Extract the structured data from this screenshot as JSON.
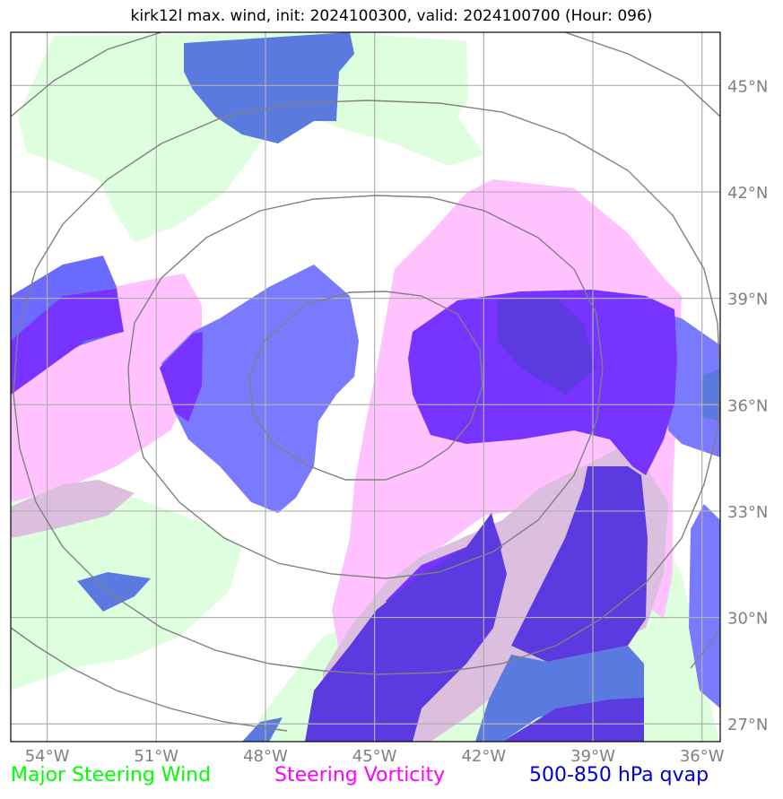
{
  "title": "kirk12l max. wind, init: 2024100300, valid: 2024100700 (Hour: 096)",
  "map": {
    "lon_range": [
      -55,
      -35.5
    ],
    "lat_range": [
      26.5,
      46.5
    ],
    "lat_ticks": [
      {
        "value": 45,
        "label": "45°N"
      },
      {
        "value": 42,
        "label": "42°N"
      },
      {
        "value": 39,
        "label": "39°N"
      },
      {
        "value": 36,
        "label": "36°N"
      },
      {
        "value": 33,
        "label": "33°N"
      },
      {
        "value": 30,
        "label": "30°N"
      },
      {
        "value": 27,
        "label": "27°N"
      }
    ],
    "lon_ticks": [
      {
        "value": -54,
        "label": "54°W"
      },
      {
        "value": -51,
        "label": "51°W"
      },
      {
        "value": -48,
        "label": "48°W"
      },
      {
        "value": -45,
        "label": "45°W"
      },
      {
        "value": -42,
        "label": "42°W"
      },
      {
        "value": -39,
        "label": "39°W"
      },
      {
        "value": -36,
        "label": "36°W"
      }
    ],
    "layer_colors": {
      "steering_wind": "#ddffdd",
      "steering_vorticity": "#ffc2ff",
      "qvap": "#6b6bff",
      "qvap_dense": "#7733ff",
      "qvap_dark": "#5533dd"
    },
    "range_ring_color": "#808080",
    "grid_color": "#b0b0b0"
  },
  "legend": [
    {
      "label": "Major Steering Wind",
      "color": "#00ff00"
    },
    {
      "label": "Steering Vorticity",
      "color": "#ff00ff"
    },
    {
      "label": "500-850 hPa qvap",
      "color": "#0000cc"
    }
  ]
}
